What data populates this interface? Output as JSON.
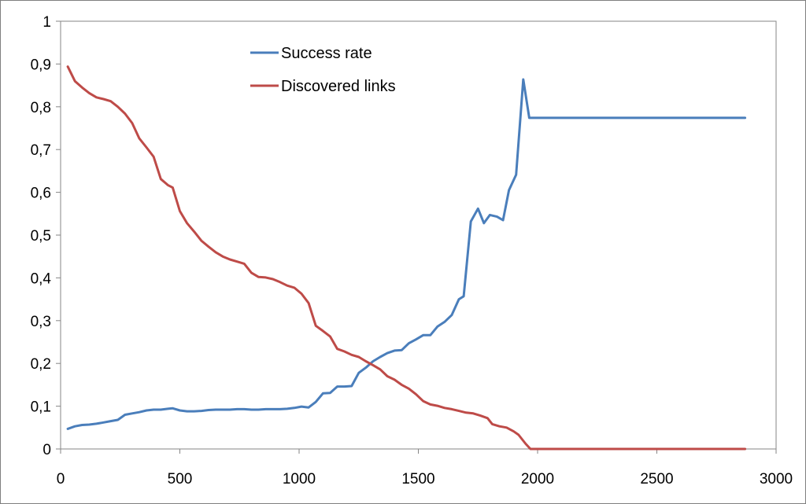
{
  "chart_data": {
    "type": "line",
    "title": "",
    "xlabel": "",
    "ylabel": "",
    "xlim": [
      0,
      3000
    ],
    "ylim": [
      0,
      1
    ],
    "x_ticks": [
      0,
      500,
      1000,
      1500,
      2000,
      2500,
      3000
    ],
    "x_tick_labels": [
      "0",
      "500",
      "1000",
      "1500",
      "2000",
      "2500",
      "3000"
    ],
    "y_ticks": [
      0,
      0.1,
      0.2,
      0.3,
      0.4,
      0.5,
      0.6,
      0.7,
      0.8,
      0.9,
      1
    ],
    "y_tick_labels": [
      "0",
      "0,1",
      "0,2",
      "0,3",
      "0,4",
      "0,5",
      "0,6",
      "0,7",
      "0,8",
      "0,9",
      "1"
    ],
    "grid": false,
    "legend": {
      "placement": "top-center"
    },
    "series": [
      {
        "name": "Success rate",
        "color": "#4a7ebb",
        "points": [
          [
            30,
            0.047
          ],
          [
            60,
            0.053
          ],
          [
            90,
            0.056
          ],
          [
            120,
            0.057
          ],
          [
            150,
            0.059
          ],
          [
            180,
            0.062
          ],
          [
            210,
            0.065
          ],
          [
            240,
            0.068
          ],
          [
            270,
            0.08
          ],
          [
            300,
            0.083
          ],
          [
            330,
            0.086
          ],
          [
            360,
            0.09
          ],
          [
            390,
            0.092
          ],
          [
            420,
            0.092
          ],
          [
            450,
            0.094
          ],
          [
            470,
            0.095
          ],
          [
            500,
            0.09
          ],
          [
            530,
            0.088
          ],
          [
            560,
            0.088
          ],
          [
            590,
            0.089
          ],
          [
            620,
            0.091
          ],
          [
            650,
            0.092
          ],
          [
            680,
            0.092
          ],
          [
            710,
            0.092
          ],
          [
            740,
            0.093
          ],
          [
            770,
            0.093
          ],
          [
            800,
            0.092
          ],
          [
            830,
            0.092
          ],
          [
            860,
            0.093
          ],
          [
            890,
            0.093
          ],
          [
            920,
            0.093
          ],
          [
            950,
            0.094
          ],
          [
            980,
            0.096
          ],
          [
            1010,
            0.099
          ],
          [
            1040,
            0.097
          ],
          [
            1070,
            0.11
          ],
          [
            1100,
            0.13
          ],
          [
            1130,
            0.131
          ],
          [
            1160,
            0.146
          ],
          [
            1190,
            0.146
          ],
          [
            1220,
            0.147
          ],
          [
            1250,
            0.178
          ],
          [
            1280,
            0.19
          ],
          [
            1310,
            0.205
          ],
          [
            1340,
            0.215
          ],
          [
            1370,
            0.224
          ],
          [
            1400,
            0.23
          ],
          [
            1430,
            0.231
          ],
          [
            1460,
            0.247
          ],
          [
            1490,
            0.256
          ],
          [
            1520,
            0.266
          ],
          [
            1550,
            0.266
          ],
          [
            1580,
            0.286
          ],
          [
            1610,
            0.297
          ],
          [
            1640,
            0.313
          ],
          [
            1670,
            0.35
          ],
          [
            1690,
            0.357
          ],
          [
            1720,
            0.532
          ],
          [
            1750,
            0.562
          ],
          [
            1775,
            0.528
          ],
          [
            1800,
            0.547
          ],
          [
            1830,
            0.543
          ],
          [
            1855,
            0.535
          ],
          [
            1880,
            0.605
          ],
          [
            1910,
            0.641
          ],
          [
            1940,
            0.864
          ],
          [
            1965,
            0.774
          ],
          [
            2000,
            0.774
          ],
          [
            2500,
            0.774
          ],
          [
            2870,
            0.774
          ]
        ]
      },
      {
        "name": "Discovered links",
        "color": "#be4b48",
        "points": [
          [
            30,
            0.894
          ],
          [
            60,
            0.86
          ],
          [
            90,
            0.845
          ],
          [
            120,
            0.832
          ],
          [
            150,
            0.822
          ],
          [
            180,
            0.818
          ],
          [
            210,
            0.813
          ],
          [
            240,
            0.8
          ],
          [
            270,
            0.784
          ],
          [
            300,
            0.762
          ],
          [
            330,
            0.726
          ],
          [
            360,
            0.705
          ],
          [
            390,
            0.683
          ],
          [
            420,
            0.631
          ],
          [
            450,
            0.617
          ],
          [
            470,
            0.611
          ],
          [
            500,
            0.556
          ],
          [
            530,
            0.528
          ],
          [
            560,
            0.508
          ],
          [
            590,
            0.487
          ],
          [
            620,
            0.473
          ],
          [
            650,
            0.46
          ],
          [
            680,
            0.45
          ],
          [
            710,
            0.443
          ],
          [
            740,
            0.438
          ],
          [
            770,
            0.433
          ],
          [
            800,
            0.412
          ],
          [
            830,
            0.402
          ],
          [
            860,
            0.401
          ],
          [
            890,
            0.397
          ],
          [
            920,
            0.39
          ],
          [
            950,
            0.382
          ],
          [
            980,
            0.377
          ],
          [
            1010,
            0.363
          ],
          [
            1040,
            0.341
          ],
          [
            1070,
            0.288
          ],
          [
            1100,
            0.276
          ],
          [
            1130,
            0.263
          ],
          [
            1160,
            0.234
          ],
          [
            1190,
            0.228
          ],
          [
            1220,
            0.22
          ],
          [
            1250,
            0.215
          ],
          [
            1280,
            0.205
          ],
          [
            1310,
            0.196
          ],
          [
            1340,
            0.186
          ],
          [
            1370,
            0.17
          ],
          [
            1400,
            0.162
          ],
          [
            1430,
            0.15
          ],
          [
            1460,
            0.141
          ],
          [
            1490,
            0.128
          ],
          [
            1520,
            0.112
          ],
          [
            1550,
            0.104
          ],
          [
            1580,
            0.101
          ],
          [
            1610,
            0.096
          ],
          [
            1640,
            0.093
          ],
          [
            1670,
            0.089
          ],
          [
            1700,
            0.085
          ],
          [
            1730,
            0.083
          ],
          [
            1760,
            0.078
          ],
          [
            1790,
            0.072
          ],
          [
            1810,
            0.058
          ],
          [
            1840,
            0.053
          ],
          [
            1870,
            0.05
          ],
          [
            1900,
            0.041
          ],
          [
            1920,
            0.033
          ],
          [
            1950,
            0.012
          ],
          [
            1970,
            0.0
          ],
          [
            2000,
            0.0
          ],
          [
            2500,
            0.0
          ],
          [
            2870,
            0.0
          ]
        ]
      }
    ]
  }
}
